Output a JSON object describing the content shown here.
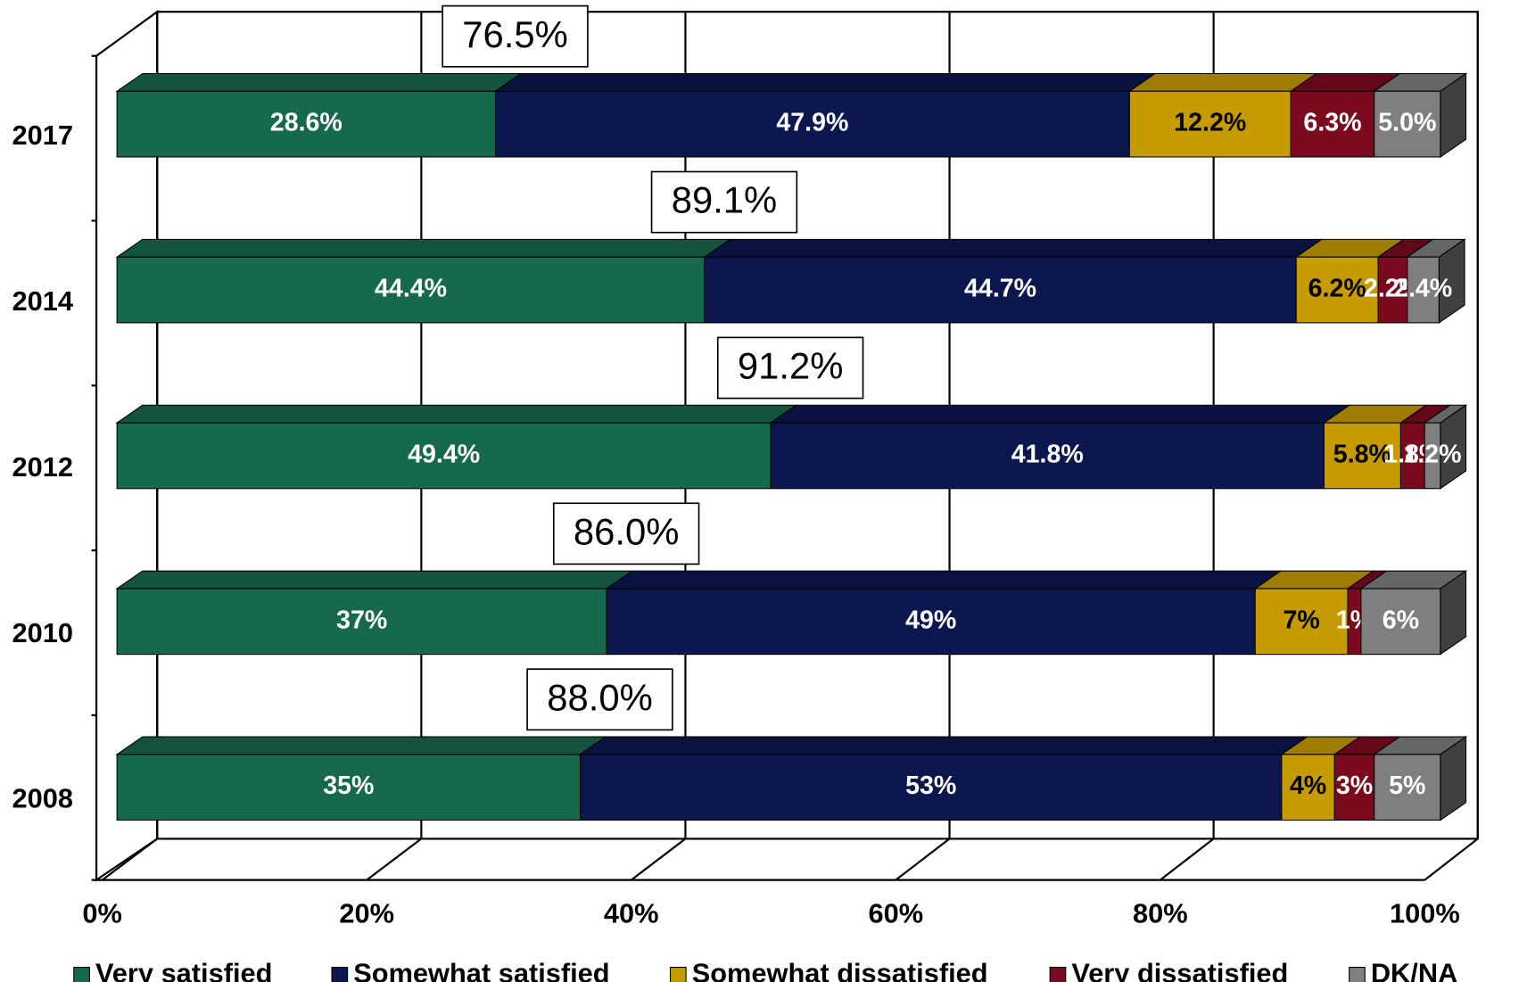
{
  "chart_data": {
    "type": "stacked-bar-3d",
    "orientation": "horizontal",
    "categories": [
      "2017",
      "2014",
      "2012",
      "2010",
      "2008"
    ],
    "series": [
      {
        "name": "Very satisfied",
        "color": "#17694c",
        "values": [
          28.6,
          44.4,
          49.4,
          37,
          35
        ],
        "value_labels": [
          "28.6%",
          "44.4%",
          "49.4%",
          "37%",
          "35%"
        ]
      },
      {
        "name": "Somewhat satisfied",
        "color": "#0c174f",
        "values": [
          47.9,
          44.7,
          41.8,
          49,
          53
        ],
        "value_labels": [
          "47.9%",
          "44.7%",
          "41.8%",
          "49%",
          "53%"
        ]
      },
      {
        "name": "Somewhat dissatisfied",
        "color": "#c59b00",
        "values": [
          12.2,
          6.2,
          5.8,
          7,
          4
        ],
        "value_labels": [
          "12.2%",
          "6.2%",
          "5.8%",
          "7%",
          "4%"
        ]
      },
      {
        "name": "Very dissatisfied",
        "color": "#7a0a1e",
        "values": [
          6.3,
          2.2,
          1.8,
          1,
          3
        ],
        "value_labels": [
          "6.3%",
          "2.2%",
          "1.8%",
          "1%",
          "3%"
        ]
      },
      {
        "name": "DK/NA",
        "color": "#7f7f7f",
        "values": [
          5.0,
          2.4,
          1.2,
          6,
          5
        ],
        "value_labels": [
          "5.0%",
          "2.4%",
          "1.2%",
          "6%",
          "5%"
        ]
      }
    ],
    "totals": [
      {
        "value": 76.5,
        "label": "76.5%"
      },
      {
        "value": 89.1,
        "label": "89.1%"
      },
      {
        "value": 91.2,
        "label": "91.2%"
      },
      {
        "value": 86.0,
        "label": "86.0%"
      },
      {
        "value": 88.0,
        "label": "88.0%"
      }
    ],
    "xlim": [
      0,
      100
    ],
    "xticks": [
      {
        "value": 0,
        "label": "0%"
      },
      {
        "value": 20,
        "label": "20%"
      },
      {
        "value": 40,
        "label": "40%"
      },
      {
        "value": 60,
        "label": "60%"
      },
      {
        "value": 80,
        "label": "80%"
      },
      {
        "value": 100,
        "label": "100%"
      }
    ],
    "grid": true,
    "legend": "bottom"
  }
}
